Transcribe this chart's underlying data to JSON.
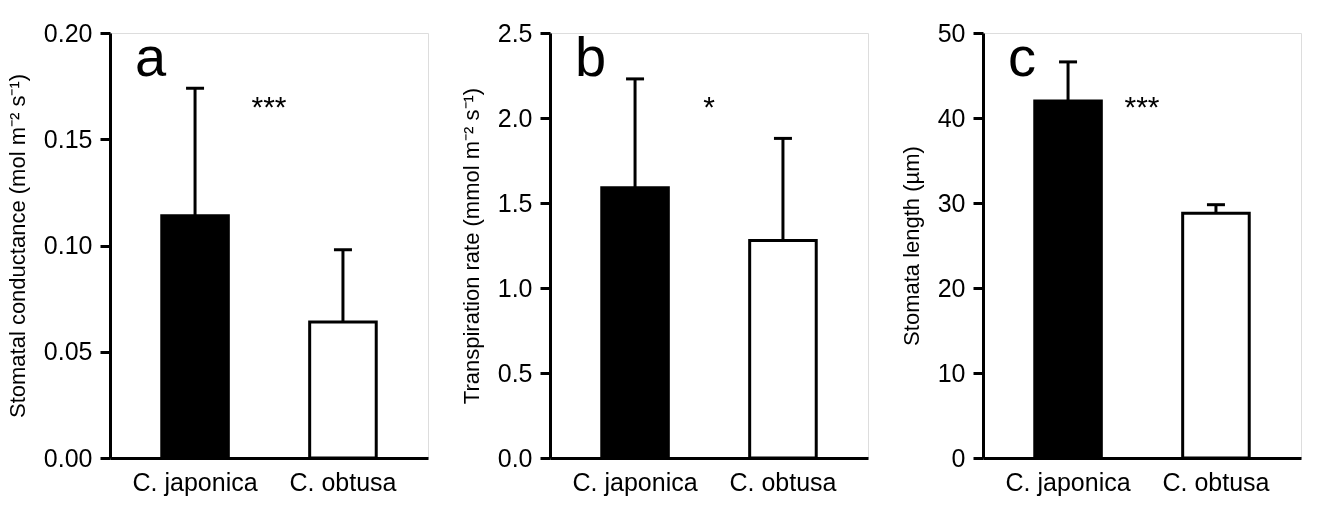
{
  "chart_data": [
    {
      "type": "bar",
      "ylabel": "Stomatal conductance (mol m⁻² s⁻¹)",
      "categories": [
        "C. japonica",
        "C. obtusa"
      ],
      "values": [
        0.114,
        0.064
      ],
      "errors": [
        0.06,
        0.034
      ],
      "colors": [
        "#000000",
        "#ffffff"
      ],
      "ylim": [
        0,
        0.2
      ],
      "yticks": [
        {
          "value": 0,
          "label": "0.00"
        },
        {
          "value": 0.05,
          "label": "0.05"
        },
        {
          "value": 0.1,
          "label": "0.10"
        },
        {
          "value": 0.15,
          "label": "0.15"
        },
        {
          "value": 0.2,
          "label": "0.20"
        }
      ],
      "grid": false,
      "legend": false,
      "annotations": [
        "a",
        "***"
      ]
    },
    {
      "type": "bar",
      "ylabel": "Transpiration rate (mmol m⁻² s⁻¹)",
      "categories": [
        "C. japonica",
        "C. obtusa"
      ],
      "values": [
        1.59,
        1.28
      ],
      "errors": [
        0.64,
        0.6
      ],
      "colors": [
        "#000000",
        "#ffffff"
      ],
      "ylim": [
        0,
        2.5
      ],
      "yticks": [
        {
          "value": 0,
          "label": "0.0"
        },
        0.5,
        {
          "value": 1,
          "label": "1.0"
        },
        1.5,
        {
          "value": 2,
          "label": "2.0"
        },
        2.5
      ],
      "grid": false,
      "legend": false,
      "annotations": [
        "b",
        "*"
      ]
    },
    {
      "type": "bar",
      "ylabel": "Stomata length (µm)",
      "categories": [
        "C. japonica",
        "C. obtusa"
      ],
      "values": [
        42.0,
        28.8
      ],
      "errors": [
        4.6,
        1.0
      ],
      "colors": [
        "#000000",
        "#ffffff"
      ],
      "ylim": [
        0,
        50
      ],
      "yticks": [
        0,
        10,
        20,
        30,
        40,
        50
      ],
      "grid": false,
      "legend": false,
      "annotations": [
        "c",
        "***"
      ]
    }
  ]
}
